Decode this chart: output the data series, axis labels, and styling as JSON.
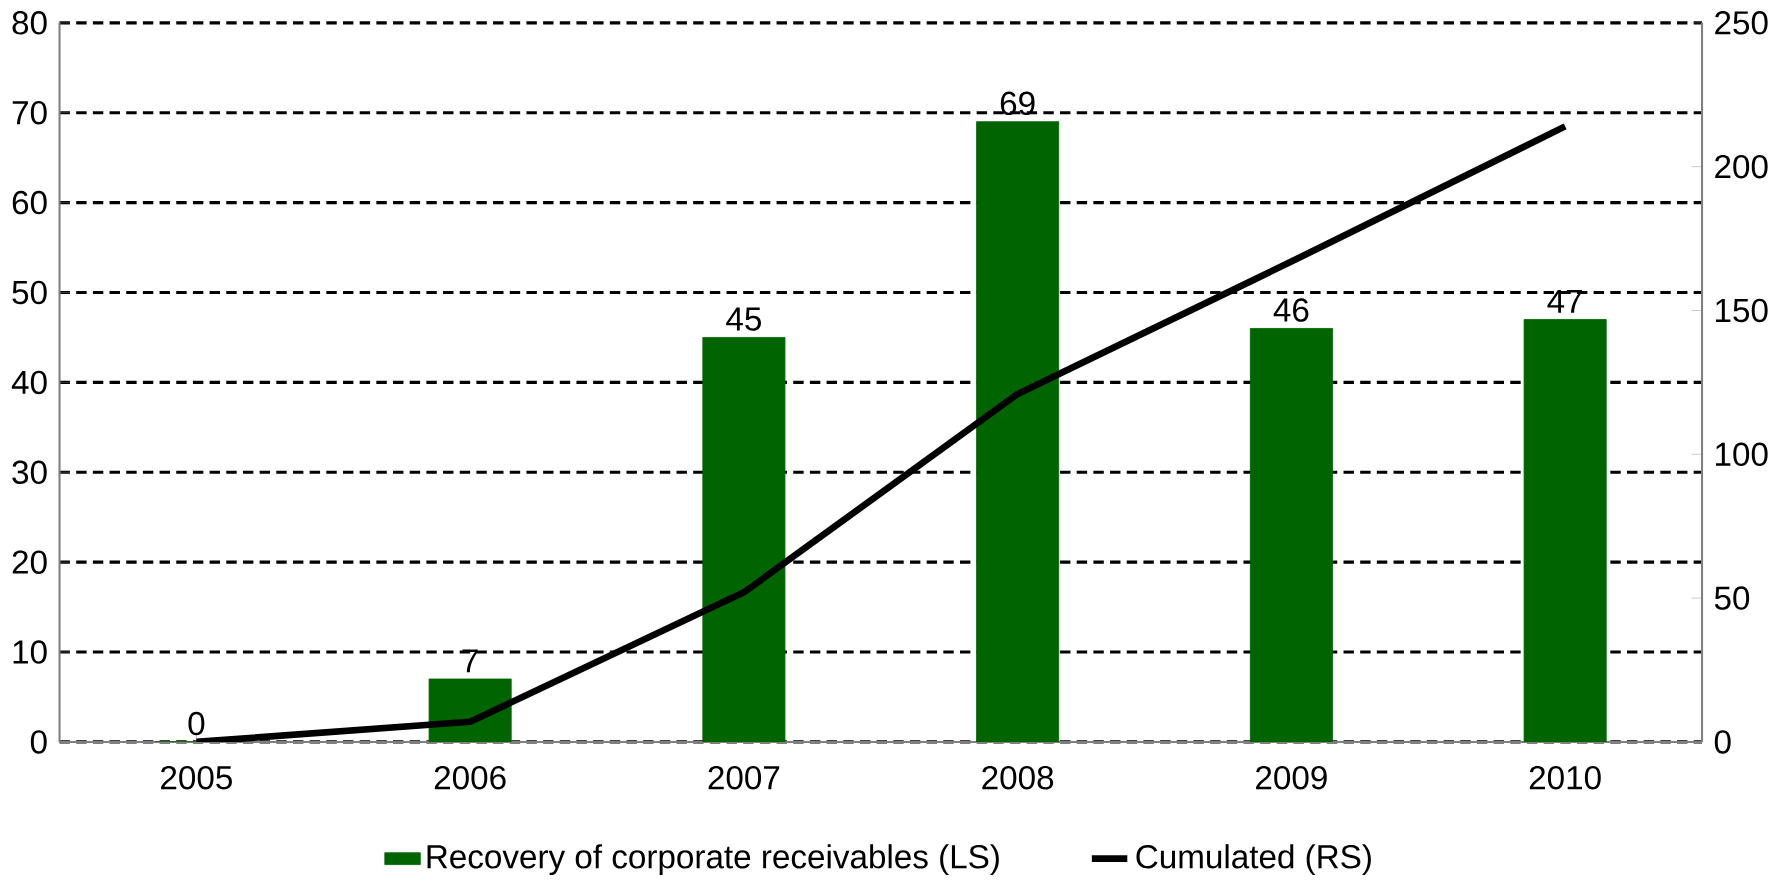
{
  "chart_data": {
    "type": "bar",
    "categories": [
      "2005",
      "2006",
      "2007",
      "2008",
      "2009",
      "2010"
    ],
    "series": [
      {
        "name": "Recovery of corporate receivables (LS)",
        "color": "#006400",
        "values": [
          0,
          7,
          45,
          69,
          46,
          47
        ],
        "value_labels": [
          "0",
          "7",
          "45",
          "69",
          "46",
          "47"
        ]
      },
      {
        "name": "Cumulated (RS)",
        "type": "line",
        "axis": "y2",
        "color": "#000000",
        "values": [
          0,
          7,
          52,
          121,
          167,
          214
        ]
      }
    ],
    "ylim": [
      0,
      80
    ],
    "yticks": [
      0,
      10,
      20,
      30,
      40,
      50,
      60,
      70,
      80
    ],
    "y2lim": [
      0,
      250
    ],
    "y2ticks": [
      0,
      50,
      100,
      150,
      200,
      250
    ],
    "grid": "y",
    "legend": "bottom",
    "marker": "none",
    "line_style": "solid"
  }
}
